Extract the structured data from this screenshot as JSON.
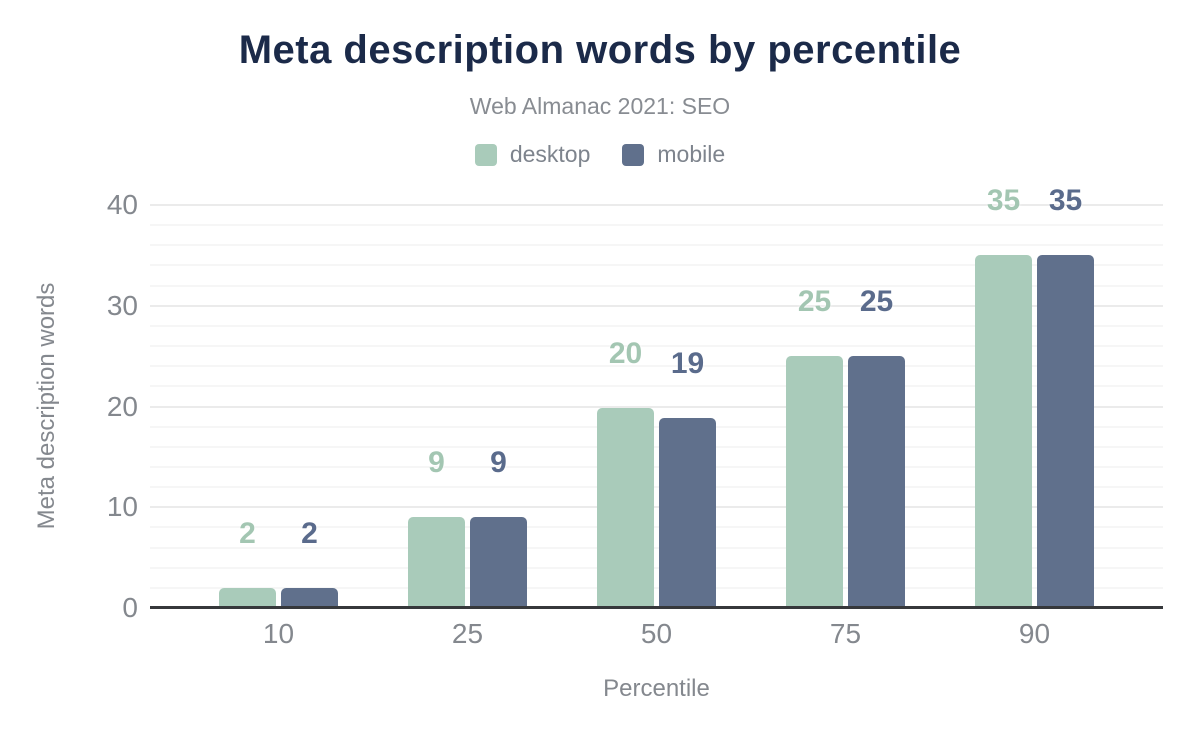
{
  "chart_data": {
    "type": "bar",
    "title": "Meta description words by percentile",
    "subtitle": "Web Almanac 2021: SEO",
    "xlabel": "Percentile",
    "ylabel": "Meta description words",
    "categories": [
      "10",
      "25",
      "50",
      "75",
      "90"
    ],
    "series": [
      {
        "name": "desktop",
        "color": "#a9cbba",
        "label_color": "#a3c6b2",
        "values": [
          2,
          9,
          19.9,
          25,
          35
        ],
        "labels": [
          "2",
          "9",
          "20",
          "25",
          "35"
        ]
      },
      {
        "name": "mobile",
        "color": "#60708c",
        "label_color": "#5a6b8c",
        "values": [
          2,
          9,
          18.9,
          25,
          35
        ],
        "labels": [
          "2",
          "9",
          "19",
          "25",
          "35"
        ]
      }
    ],
    "ylim": [
      0,
      40
    ],
    "yticks": [
      0,
      10,
      20,
      30,
      40
    ],
    "grid": {
      "minor_step": 2,
      "major_step": 10,
      "visible": true
    },
    "legend_position": "top",
    "colors": {
      "title": "#1b2a49",
      "axis_text": "#84888e",
      "axis_line": "#36383b",
      "grid_minor": "#f6f6f6",
      "grid_major": "#ebebeb",
      "background": "#ffffff"
    }
  }
}
